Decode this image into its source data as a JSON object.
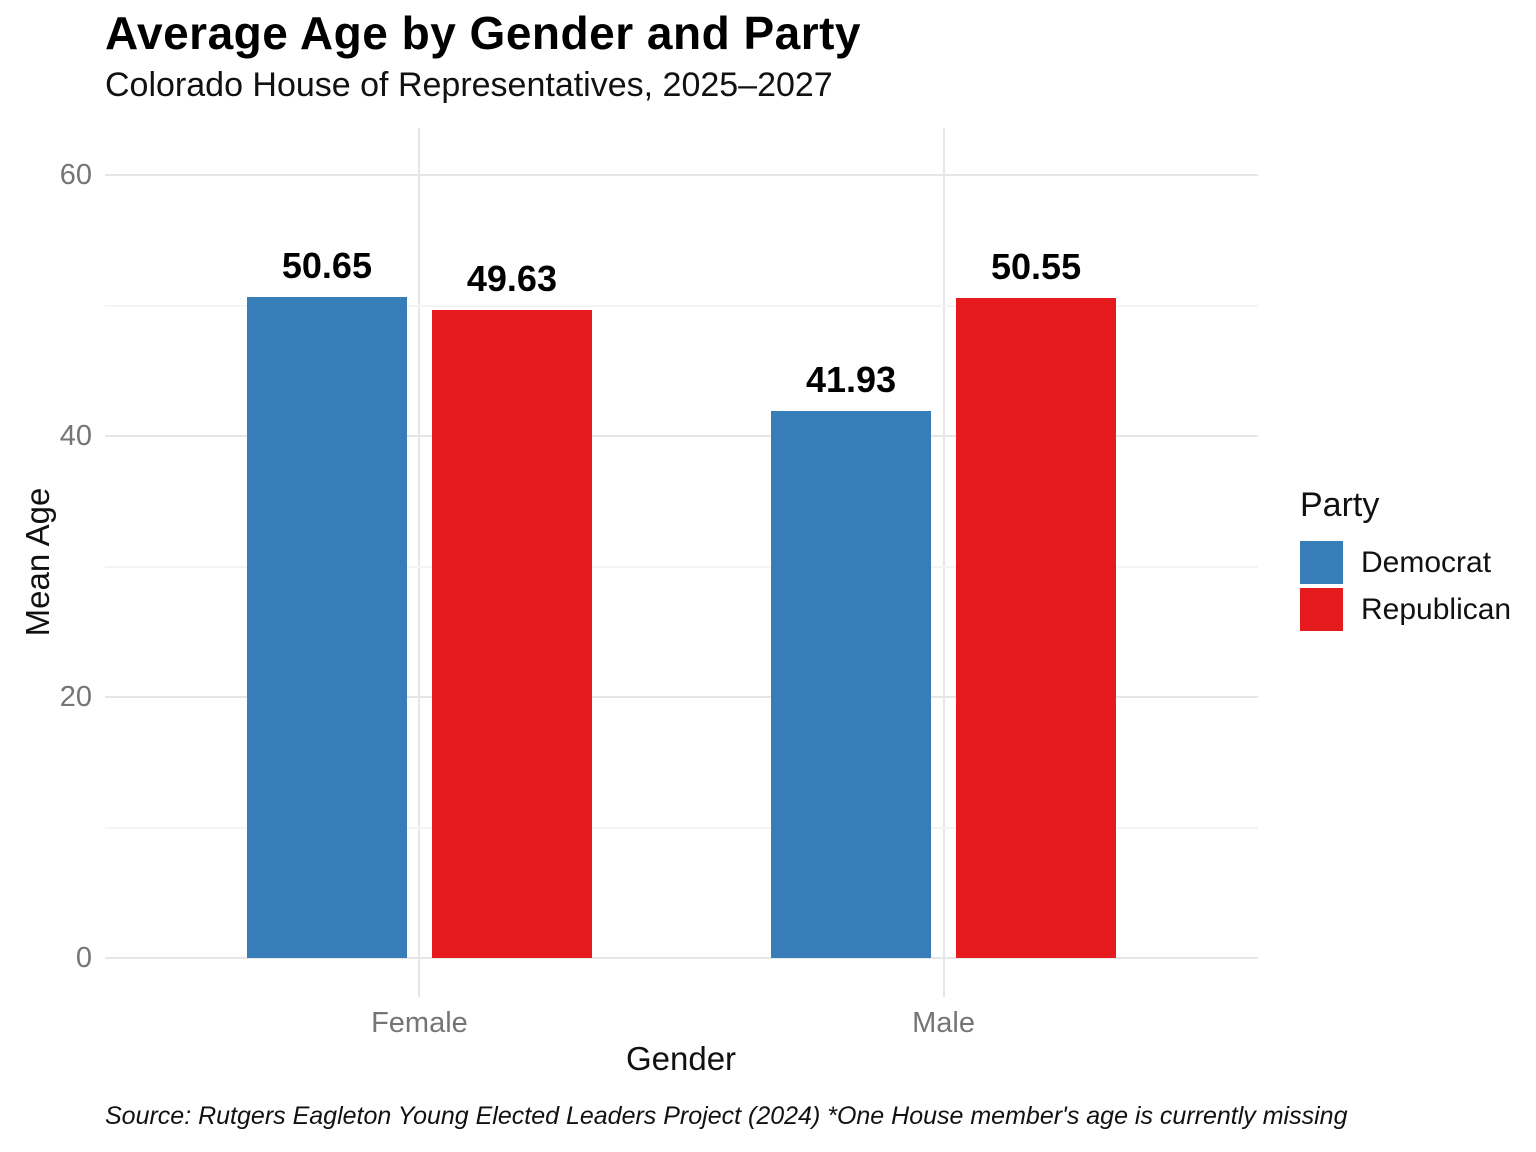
{
  "chart_data": {
    "type": "bar",
    "title": "Average Age by Gender and Party",
    "subtitle": "Colorado House of Representatives, 2025–2027",
    "caption": "Source: Rutgers Eagleton Young Elected Leaders Project (2024) *One House member's age is currently missing",
    "xlabel": "Gender",
    "ylabel": "Mean Age",
    "categories": [
      "Female",
      "Male"
    ],
    "series": [
      {
        "name": "Democrat",
        "color": "#377EB8",
        "values": [
          50.65,
          41.93
        ],
        "labels": [
          "50.65",
          "41.93"
        ]
      },
      {
        "name": "Republican",
        "color": "#E41A1C",
        "values": [
          49.63,
          50.55
        ],
        "labels": [
          "49.63",
          "50.55"
        ]
      }
    ],
    "ylim": [
      0,
      60
    ],
    "yticks": [
      0,
      20,
      40,
      60
    ],
    "ytick_labels": [
      "0",
      "20",
      "40",
      "60"
    ],
    "minor_ticks": [
      10,
      30,
      50
    ],
    "grid": "major-and-minor, light gray on white",
    "legend": {
      "title": "Party",
      "position": "right",
      "entries": [
        "Democrat",
        "Republican"
      ]
    },
    "colors": {
      "democrat": "#377EB8",
      "republican": "#E41A1C",
      "grid_major": "#e6e6e6",
      "grid_minor": "#f4f4f4",
      "tick_text": "#757575",
      "text": "#111111"
    }
  }
}
